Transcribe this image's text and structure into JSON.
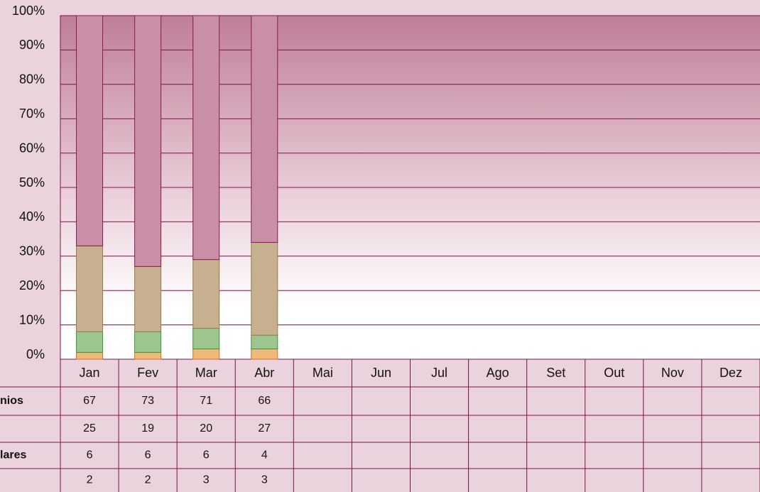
{
  "chart_data": {
    "type": "stacked_bar_100",
    "categories": [
      "Jan",
      "Fev",
      "Mar",
      "Abr",
      "Mai",
      "Jun",
      "Jul",
      "Ago",
      "Set",
      "Out",
      "Nov",
      "Dez"
    ],
    "series": [
      {
        "name": "nios",
        "color": "#c98fa8",
        "stroke": "#8b1a4a",
        "values": [
          67,
          73,
          71,
          66,
          null,
          null,
          null,
          null,
          null,
          null,
          null,
          null
        ]
      },
      {
        "name": null,
        "color": "#c6b08f",
        "stroke": "#9a7a40",
        "values": [
          25,
          19,
          20,
          27,
          null,
          null,
          null,
          null,
          null,
          null,
          null,
          null
        ]
      },
      {
        "name": "lares",
        "color": "#9dc68f",
        "stroke": "#2f9a3a",
        "values": [
          6,
          6,
          6,
          4,
          null,
          null,
          null,
          null,
          null,
          null,
          null,
          null
        ]
      },
      {
        "name": null,
        "color": "#f0b97c",
        "stroke": "#e06a20",
        "values": [
          2,
          2,
          3,
          3,
          null,
          null,
          null,
          null,
          null,
          null,
          null,
          null
        ]
      }
    ],
    "ylim": [
      0,
      100
    ],
    "yticks": [
      {
        "value": 0,
        "label": "0%"
      },
      {
        "value": 10,
        "label": "10%"
      },
      {
        "value": 20,
        "label": "20%"
      },
      {
        "value": 30,
        "label": "30%"
      },
      {
        "value": 40,
        "label": "40%"
      },
      {
        "value": 50,
        "label": "50%"
      },
      {
        "value": 60,
        "label": "60%"
      },
      {
        "value": 70,
        "label": "70%"
      },
      {
        "value": 80,
        "label": "80%"
      },
      {
        "value": 90,
        "label": "90%"
      },
      {
        "value": 100,
        "label": "100%"
      }
    ],
    "grid": true
  }
}
